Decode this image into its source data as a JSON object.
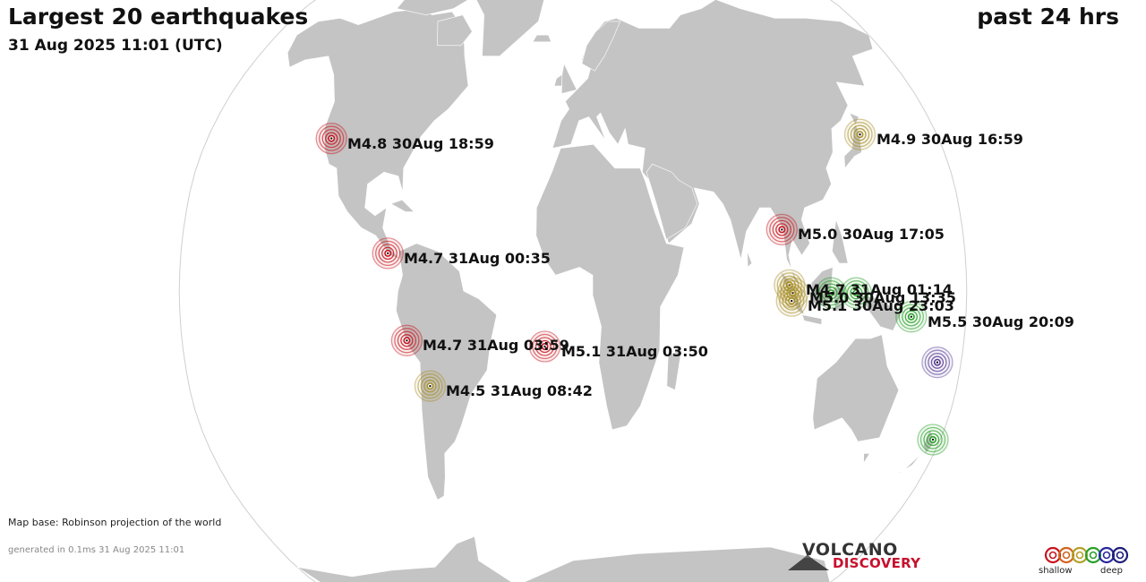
{
  "header": {
    "title": "Largest 20 earthquakes",
    "timestamp": "31 Aug 2025 11:01 (UTC)",
    "period": "past 24 hrs"
  },
  "map": {
    "projection_note": "Map base: Robinson projection of the world",
    "ocean_color": "#ffffff",
    "land_color": "#c4c4c4",
    "border_color": "#ffffff"
  },
  "footer": {
    "generated": "generated in 0.1ms 31 Aug 2025 11:01"
  },
  "logo": {
    "line1": "VOLCANO",
    "line2": "DISCOVERY"
  },
  "legend": {
    "shallow": "shallow",
    "deep": "deep",
    "colors": [
      "#c8141e",
      "#d2641e",
      "#b4a028",
      "#28a028",
      "#2828a0",
      "#1e1e78"
    ]
  },
  "earthquakes": [
    {
      "label": "M4.8 30Aug 18:59",
      "lat": 38.5,
      "lon": -119,
      "depth_class": "shallow",
      "color": "#c8141e"
    },
    {
      "label": "M4.9 30Aug 16:59",
      "lat": 39.5,
      "lon": 142,
      "depth_class": "intermediate",
      "color": "#a8902a"
    },
    {
      "label": "M5.0 30Aug 17:05",
      "lat": 15.5,
      "lon": 96.5,
      "depth_class": "shallow",
      "color": "#c8141e"
    },
    {
      "label": "M4.7 31Aug 00:35",
      "lat": 9.5,
      "lon": -85,
      "depth_class": "shallow",
      "color": "#c8141e"
    },
    {
      "label": "M4.7 31Aug 01:14",
      "lat": 1.5,
      "lon": 99,
      "depth_class": "intermediate",
      "color": "#a8902a"
    },
    {
      "label": "M5.0 30Aug 13:35",
      "lat": -0.5,
      "lon": 100.5,
      "depth_class": "intermediate",
      "color": "#a8902a"
    },
    {
      "label": "M5.1 30Aug 23:03",
      "lat": -2.5,
      "lon": 100,
      "depth_class": "intermediate",
      "color": "#a8902a"
    },
    {
      "label": "M5.5 30Aug 20:09",
      "lat": -6.5,
      "lon": 155,
      "depth_class": "deep-intermediate",
      "color": "#28a028"
    },
    {
      "label": "M4.7 31Aug 03:59",
      "lat": -12.5,
      "lon": -76.5,
      "depth_class": "shallow",
      "color": "#c8141e"
    },
    {
      "label": "M5.1 31Aug 03:50",
      "lat": -14,
      "lon": -13,
      "depth_class": "shallow",
      "color": "#c8141e"
    },
    {
      "label": "M4.5 31Aug 08:42",
      "lat": -24,
      "lon": -67,
      "depth_class": "intermediate",
      "color": "#a8902a"
    },
    {
      "label": "",
      "lat": -0.5,
      "lon": 118,
      "depth_class": "deep-intermediate",
      "color": "#28a028"
    },
    {
      "label": "",
      "lat": -0.5,
      "lon": 129.5,
      "depth_class": "deep-intermediate",
      "color": "#28a028"
    },
    {
      "label": "",
      "lat": -18,
      "lon": 169,
      "depth_class": "very-deep",
      "color": "#5a3c96"
    },
    {
      "label": "",
      "lat": -37.5,
      "lon": 176.5,
      "depth_class": "deep-intermediate",
      "color": "#28a028"
    }
  ]
}
